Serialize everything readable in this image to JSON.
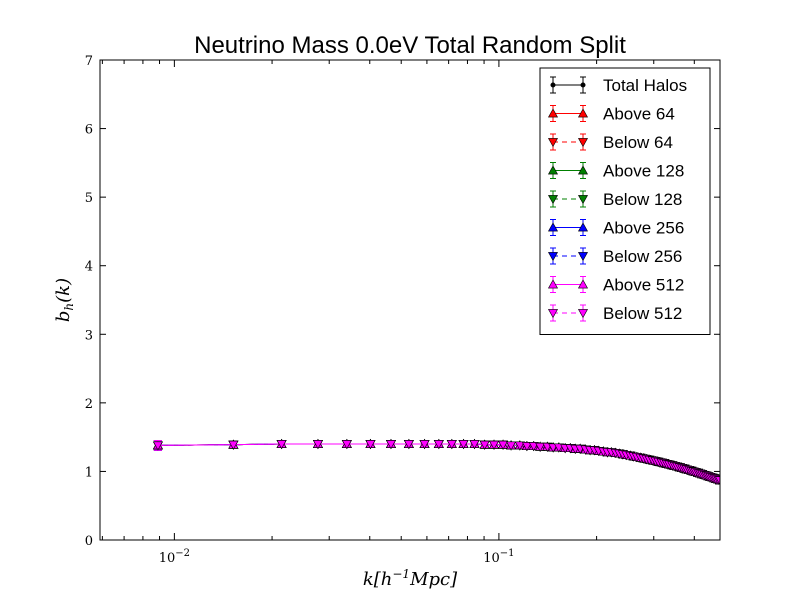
{
  "chart_data": {
    "type": "line",
    "title": "Neutrino Mass 0.0eV Total Random Split",
    "xlabel": "k[h^{-1}Mpc]",
    "ylabel": "b_h(k)",
    "xscale": "log",
    "xlim": [
      0.0059,
      0.48
    ],
    "ylim": [
      0,
      7
    ],
    "yticks": [
      0,
      1,
      2,
      3,
      4,
      5,
      6,
      7
    ],
    "xticks": [
      {
        "value": 0.01,
        "base": "10",
        "exp": "−2"
      },
      {
        "value": 0.1,
        "base": "10",
        "exp": "−1"
      }
    ],
    "legend_location": "top-right",
    "x": [
      0.0089,
      0.0152,
      0.0214,
      0.0277,
      0.034,
      0.0402,
      0.0465,
      0.0528,
      0.059,
      0.0653,
      0.0716,
      0.0778,
      0.0841,
      0.0904,
      0.0966,
      0.103,
      0.109,
      0.116,
      0.122,
      0.128,
      0.134,
      0.141,
      0.147,
      0.153,
      0.16,
      0.166,
      0.172,
      0.178,
      0.185,
      0.191,
      0.197,
      0.203,
      0.21,
      0.216,
      0.222,
      0.229,
      0.235,
      0.241,
      0.247,
      0.254,
      0.26,
      0.266,
      0.273,
      0.279,
      0.285,
      0.291,
      0.298,
      0.304,
      0.31,
      0.317,
      0.323,
      0.329,
      0.335,
      0.342,
      0.348,
      0.354,
      0.361,
      0.367,
      0.373,
      0.379,
      0.386,
      0.392,
      0.398,
      0.404,
      0.411,
      0.417,
      0.423,
      0.43,
      0.436,
      0.442,
      0.448,
      0.455,
      0.461,
      0.467,
      0.474,
      0.48
    ],
    "y": [
      1.38,
      1.39,
      1.4,
      1.4,
      1.4,
      1.4,
      1.4,
      1.4,
      1.4,
      1.4,
      1.4,
      1.4,
      1.4,
      1.39,
      1.39,
      1.39,
      1.38,
      1.38,
      1.37,
      1.37,
      1.36,
      1.36,
      1.35,
      1.35,
      1.34,
      1.34,
      1.33,
      1.33,
      1.32,
      1.31,
      1.31,
      1.3,
      1.29,
      1.28,
      1.28,
      1.27,
      1.26,
      1.25,
      1.24,
      1.23,
      1.22,
      1.21,
      1.2,
      1.19,
      1.18,
      1.17,
      1.16,
      1.15,
      1.14,
      1.13,
      1.12,
      1.11,
      1.1,
      1.09,
      1.08,
      1.07,
      1.06,
      1.05,
      1.04,
      1.03,
      1.02,
      1.01,
      1.0,
      0.99,
      0.98,
      0.97,
      0.96,
      0.95,
      0.94,
      0.93,
      0.92,
      0.91,
      0.9,
      0.89,
      0.88,
      0.87
    ],
    "yerr_first": 0.07,
    "series": [
      {
        "name": "Total Halos",
        "color": "#000000",
        "marker": "circle",
        "dashed": false
      },
      {
        "name": "Above 64",
        "color": "#ff0000",
        "marker": "triangle-up",
        "dashed": false
      },
      {
        "name": "Below 64",
        "color": "#ff0000",
        "marker": "triangle-down",
        "dashed": true
      },
      {
        "name": "Above 128",
        "color": "#008000",
        "marker": "triangle-up",
        "dashed": false
      },
      {
        "name": "Below 128",
        "color": "#008000",
        "marker": "triangle-down",
        "dashed": true
      },
      {
        "name": "Above 256",
        "color": "#0000ff",
        "marker": "triangle-up",
        "dashed": false
      },
      {
        "name": "Below 256",
        "color": "#0000ff",
        "marker": "triangle-down",
        "dashed": true
      },
      {
        "name": "Above 512",
        "color": "#ff00ff",
        "marker": "triangle-up",
        "dashed": false
      },
      {
        "name": "Below 512",
        "color": "#ff00ff",
        "marker": "triangle-down",
        "dashed": true
      }
    ]
  }
}
